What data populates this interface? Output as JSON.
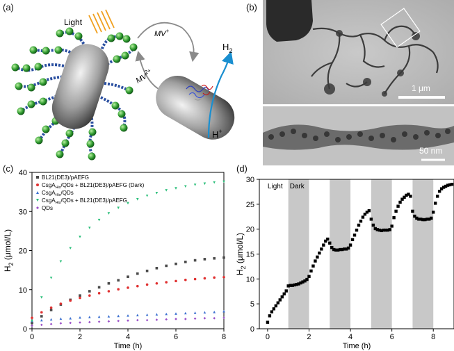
{
  "figure": {
    "panel_labels": [
      "(a)",
      "(b)",
      "(c)",
      "(d)"
    ]
  },
  "schematic": {
    "light_label": "Light",
    "mediator_oxidized": "MV",
    "mediator_oxidized_sup": "+",
    "mediator_reduced": "MV",
    "mediator_reduced_sup": "2+",
    "product": "H",
    "product_sub": "2",
    "proton": "H",
    "proton_sup": "+"
  },
  "micrographs": {
    "top_scale_bar": "1 μm",
    "bottom_scale_bar": "50 nm"
  },
  "chart_data": [
    {
      "type": "scatter",
      "panel": "(c)",
      "xlabel": "Time (h)",
      "ylabel_main": "H",
      "ylabel_sub": "2",
      "ylabel_rest": " (μmol/L)",
      "xlim": [
        0,
        8
      ],
      "ylim": [
        0,
        40
      ],
      "xticks": [
        0,
        2,
        4,
        6,
        8
      ],
      "yticks": [
        0,
        10,
        20,
        30,
        40
      ],
      "legend_position": "top-left",
      "series": [
        {
          "name": "BL21(DE3)/pAEFG",
          "color": "#4a4a4a",
          "marker": "square",
          "x": [
            0,
            0.4,
            0.8,
            1.2,
            1.6,
            2,
            2.4,
            2.8,
            3.2,
            3.6,
            4,
            4.4,
            4.8,
            5.2,
            5.6,
            6,
            6.4,
            6.8,
            7.2,
            7.6,
            8
          ],
          "y": [
            1.5,
            3.2,
            4.8,
            6.2,
            7.4,
            8.5,
            9.6,
            10.6,
            11.6,
            12.4,
            13.3,
            14.1,
            14.8,
            15.5,
            16.1,
            16.6,
            17.1,
            17.5,
            17.8,
            18.0,
            18.2
          ]
        },
        {
          "name": "CsgA-His/QDs + BL21(DE3)/pAEFG (Dark)",
          "name_parts": [
            "CsgA",
            "His",
            "/QDs + BL21(DE3)/pAEFG (Dark)"
          ],
          "color": "#e03030",
          "marker": "circle",
          "x": [
            0,
            0.4,
            0.8,
            1.2,
            1.6,
            2,
            2.4,
            2.8,
            3.2,
            3.6,
            4,
            4.4,
            4.8,
            5.2,
            5.6,
            6,
            6.4,
            6.8,
            7.2,
            7.6,
            8
          ],
          "y": [
            2.8,
            4.2,
            5.4,
            6.4,
            7.2,
            7.9,
            8.5,
            9.1,
            9.6,
            10.1,
            10.5,
            10.9,
            11.3,
            11.6,
            11.9,
            12.2,
            12.5,
            12.7,
            12.9,
            13.1,
            13.2
          ]
        },
        {
          "name": "CsgA-His/QDs",
          "name_parts": [
            "CsgA",
            "His",
            "/QDs"
          ],
          "color": "#3a6fd0",
          "marker": "triangle-up",
          "x": [
            0,
            0.4,
            0.8,
            1.2,
            1.6,
            2,
            2.4,
            2.8,
            3.2,
            3.6,
            4,
            4.4,
            4.8,
            5.2,
            5.6,
            6,
            6.4,
            6.8,
            7.2,
            7.6,
            8
          ],
          "y": [
            2.0,
            2.2,
            2.4,
            2.6,
            2.7,
            2.9,
            3.0,
            3.1,
            3.2,
            3.3,
            3.4,
            3.5,
            3.6,
            3.7,
            3.8,
            3.9,
            4.0,
            4.1,
            4.2,
            4.3,
            4.5
          ]
        },
        {
          "name": "CsgA-His/QDs + BL21(DE3)/pAEFG",
          "name_parts": [
            "CsgA",
            "His",
            "/QDs + BL21(DE3)/pAEFG"
          ],
          "color": "#2bbf7a",
          "marker": "triangle-down",
          "x": [
            0,
            0.4,
            0.8,
            1.2,
            1.6,
            2,
            2.4,
            2.8,
            3.2,
            3.6,
            4,
            4.4,
            4.8,
            5.2,
            5.6,
            6,
            6.4,
            6.8,
            7.2,
            7.6,
            8
          ],
          "y": [
            2.0,
            8.0,
            13.0,
            17.2,
            20.6,
            23.5,
            25.8,
            27.8,
            29.5,
            30.9,
            32.1,
            33.1,
            34.0,
            34.7,
            35.4,
            35.9,
            36.4,
            36.8,
            37.1,
            37.4,
            37.6
          ]
        },
        {
          "name": "QDs",
          "color": "#9b4fc8",
          "marker": "diamond",
          "x": [
            0,
            0.4,
            0.8,
            1.2,
            1.6,
            2,
            2.4,
            2.8,
            3.2,
            3.6,
            4,
            4.4,
            4.8,
            5.2,
            5.6,
            6,
            6.4,
            6.8,
            7.2,
            7.6,
            8
          ],
          "y": [
            0.8,
            1.0,
            1.2,
            1.4,
            1.5,
            1.6,
            1.7,
            1.8,
            1.9,
            2.0,
            2.1,
            2.2,
            2.2,
            2.3,
            2.4,
            2.5,
            2.5,
            2.6,
            2.7,
            2.7,
            2.8
          ]
        }
      ]
    },
    {
      "type": "scatter",
      "panel": "(d)",
      "xlabel": "Time (h)",
      "ylabel_main": "H",
      "ylabel_sub": "2",
      "ylabel_rest": " (μmol/L)",
      "xlim": [
        -0.4,
        9
      ],
      "ylim": [
        0,
        30
      ],
      "xticks": [
        0,
        2,
        4,
        6,
        8
      ],
      "yticks": [
        0,
        5,
        10,
        15,
        20,
        25,
        30
      ],
      "annotations": [
        "Light",
        "Dark"
      ],
      "dark_intervals": [
        [
          1,
          2
        ],
        [
          3,
          4
        ],
        [
          5,
          6
        ],
        [
          7,
          8
        ]
      ],
      "series": [
        {
          "color": "#000000",
          "marker": "square",
          "x": [
            0,
            0.1,
            0.2,
            0.3,
            0.4,
            0.5,
            0.6,
            0.7,
            0.8,
            0.9,
            1.0,
            1.1,
            1.2,
            1.3,
            1.4,
            1.5,
            1.6,
            1.7,
            1.8,
            1.9,
            2.0,
            2.1,
            2.2,
            2.3,
            2.4,
            2.5,
            2.6,
            2.7,
            2.8,
            2.9,
            3.0,
            3.1,
            3.2,
            3.3,
            3.4,
            3.5,
            3.6,
            3.7,
            3.8,
            3.9,
            4.0,
            4.1,
            4.2,
            4.3,
            4.4,
            4.5,
            4.6,
            4.7,
            4.8,
            4.9,
            5.0,
            5.1,
            5.2,
            5.3,
            5.4,
            5.5,
            5.6,
            5.7,
            5.8,
            5.9,
            6.0,
            6.1,
            6.2,
            6.3,
            6.4,
            6.5,
            6.6,
            6.7,
            6.8,
            6.9,
            7.0,
            7.1,
            7.2,
            7.3,
            7.4,
            7.5,
            7.6,
            7.7,
            7.8,
            7.9,
            8.0,
            8.1,
            8.2,
            8.3,
            8.4,
            8.5,
            8.6,
            8.7,
            8.8,
            8.9
          ],
          "y": [
            1.3,
            2.6,
            3.4,
            4.0,
            4.6,
            5.2,
            5.8,
            6.4,
            7.0,
            7.6,
            8.6,
            8.7,
            8.7,
            8.8,
            8.9,
            9.0,
            9.2,
            9.4,
            9.6,
            9.9,
            10.5,
            11.6,
            12.6,
            13.6,
            14.4,
            15.2,
            16.0,
            16.8,
            17.6,
            18.0,
            17.2,
            16.3,
            15.9,
            15.8,
            15.8,
            15.9,
            15.9,
            16.0,
            16.0,
            16.2,
            16.8,
            17.9,
            18.8,
            19.8,
            20.8,
            21.6,
            22.4,
            23.0,
            23.4,
            23.7,
            22.0,
            20.8,
            20.1,
            19.9,
            19.8,
            19.7,
            19.8,
            19.8,
            19.8,
            19.9,
            20.6,
            22.3,
            23.6,
            24.6,
            25.4,
            26.0,
            26.4,
            26.8,
            27.0,
            26.6,
            23.6,
            22.6,
            22.2,
            22.0,
            22.0,
            21.9,
            21.9,
            22.0,
            22.0,
            22.2,
            23.4,
            25.2,
            26.6,
            27.6,
            28.1,
            28.4,
            28.6,
            28.8,
            28.9,
            29.0
          ]
        }
      ]
    }
  ]
}
